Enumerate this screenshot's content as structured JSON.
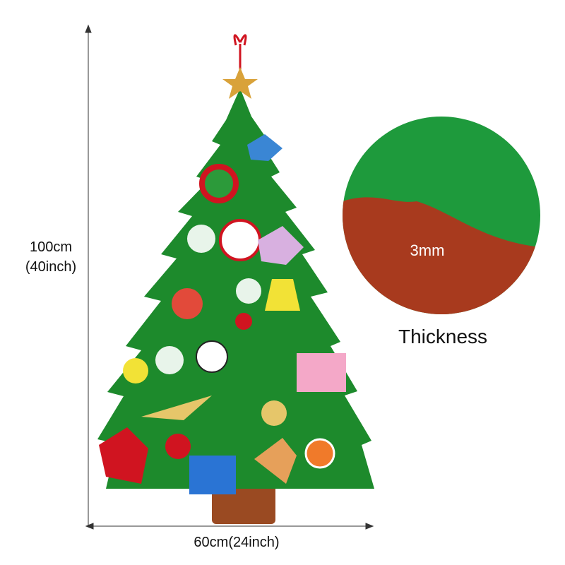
{
  "dimensions": {
    "height_cm": "100cm",
    "height_inch": "(40inch)",
    "width": "60cm(24inch)"
  },
  "detail": {
    "thickness_value": "3mm",
    "thickness_label": "Thickness"
  }
}
